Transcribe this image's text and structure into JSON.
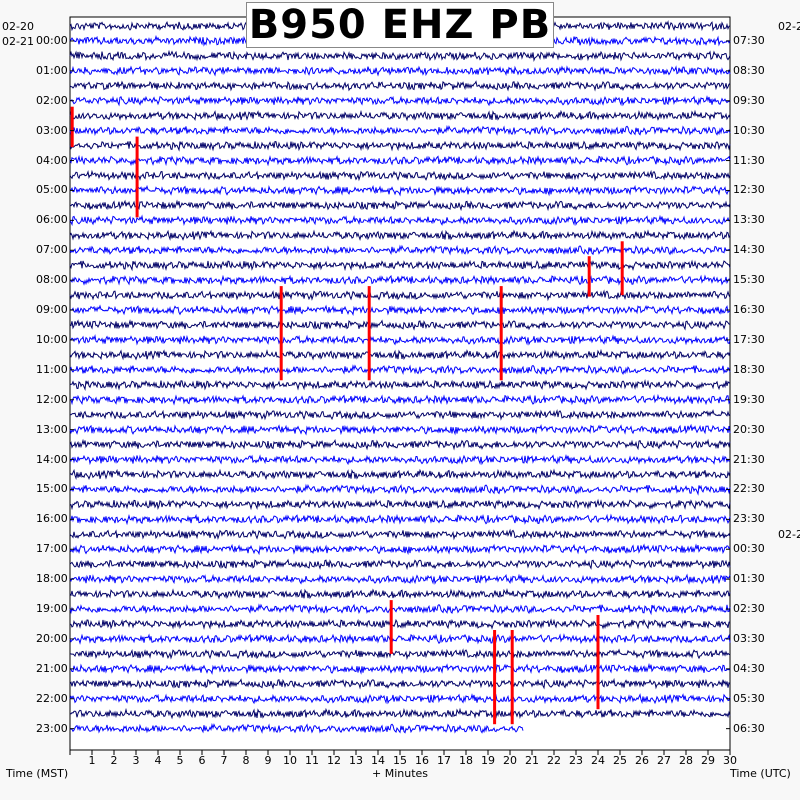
{
  "title": "B950 EHZ PB",
  "date_labels": {
    "left_top": "02-20",
    "left_start": "02-21",
    "right_top": "02-2",
    "right_mid": "02-2"
  },
  "axis_labels": {
    "left": "Time (MST)",
    "center": "+ Minutes",
    "right": "Time (UTC)"
  },
  "colors": {
    "background": "#f8f8f8",
    "plot_bg": "#ffffff",
    "trace_dark": "#000066",
    "trace_blue": "#0000ff",
    "event": "#ff0000"
  },
  "chart_data": {
    "type": "line",
    "description_kind": "helicorder",
    "x_ticks": [
      "1",
      "2",
      "3",
      "4",
      "5",
      "6",
      "7",
      "8",
      "9",
      "10",
      "11",
      "12",
      "13",
      "14",
      "15",
      "16",
      "17",
      "18",
      "19",
      "20",
      "21",
      "22",
      "23",
      "24",
      "25",
      "26",
      "27",
      "28",
      "29",
      "30"
    ],
    "xlim": [
      0,
      30
    ],
    "left_hour_labels": [
      "00:00",
      "01:00",
      "02:00",
      "03:00",
      "04:00",
      "05:00",
      "06:00",
      "07:00",
      "08:00",
      "09:00",
      "10:00",
      "11:00",
      "12:00",
      "13:00",
      "14:00",
      "15:00",
      "16:00",
      "17:00",
      "18:00",
      "19:00",
      "20:00",
      "21:00",
      "22:00",
      "23:00"
    ],
    "right_hour_labels": [
      "07:30",
      "08:30",
      "09:30",
      "10:30",
      "11:30",
      "12:30",
      "13:30",
      "14:30",
      "15:30",
      "16:30",
      "17:30",
      "18:30",
      "19:30",
      "20:30",
      "21:30",
      "22:30",
      "23:30",
      "00:30",
      "01:30",
      "02:30",
      "03:30",
      "04:30",
      "05:30",
      "06:30"
    ],
    "trace_count": 48,
    "last_trace_end_minute": 20.6,
    "events": [
      {
        "trace": 6,
        "minute": 0.1,
        "span": 3
      },
      {
        "trace": 8,
        "minute": 3.05,
        "span": 6
      },
      {
        "trace": 18,
        "minute": 9.6,
        "span": 7
      },
      {
        "trace": 18,
        "minute": 13.6,
        "span": 7
      },
      {
        "trace": 18,
        "minute": 19.6,
        "span": 7
      },
      {
        "trace": 16,
        "minute": 23.6,
        "span": 3
      },
      {
        "trace": 15,
        "minute": 25.1,
        "span": 4
      },
      {
        "trace": 39,
        "minute": 14.6,
        "span": 4
      },
      {
        "trace": 41,
        "minute": 19.3,
        "span": 7
      },
      {
        "trace": 41,
        "minute": 20.1,
        "span": 7
      },
      {
        "trace": 40,
        "minute": 24.0,
        "span": 7
      }
    ]
  }
}
